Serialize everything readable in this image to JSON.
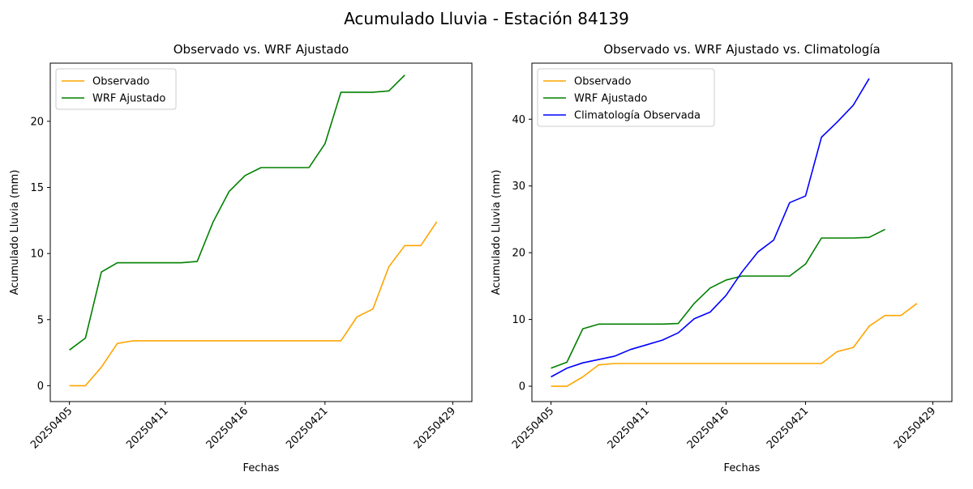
{
  "figure": {
    "suptitle": "Acumulado Lluvia - Estación 84139"
  },
  "chart_data": [
    {
      "type": "line",
      "title": "Observado vs. WRF Ajustado",
      "xlabel": "Fechas",
      "ylabel": "Acumulado Lluvia (mm)",
      "x": [
        "20250405",
        "20250406",
        "20250407",
        "20250408",
        "20250409",
        "20250410",
        "20250411",
        "20250412",
        "20250413",
        "20250414",
        "20250415",
        "20250416",
        "20250417",
        "20250418",
        "20250419",
        "20250420",
        "20250421",
        "20250422",
        "20250423",
        "20250424",
        "20250425",
        "20250426",
        "20250427",
        "20250428",
        "20250429"
      ],
      "xlim": [
        -1.2,
        25.2
      ],
      "ylim": [
        -1.2,
        24.4
      ],
      "xticks": [
        "20250405",
        "20250411",
        "20250416",
        "20250421",
        "20250429"
      ],
      "yticks": [
        0,
        5,
        10,
        15,
        20
      ],
      "legend_position": "upper left",
      "grid": false,
      "series": [
        {
          "name": "Observado",
          "color": "#ffa500",
          "points": [
            [
              0,
              0
            ],
            [
              1,
              0
            ],
            [
              2,
              1.4
            ],
            [
              3,
              3.2
            ],
            [
              4,
              3.4
            ],
            [
              5,
              3.4
            ],
            [
              6,
              3.4
            ],
            [
              7,
              3.4
            ],
            [
              8,
              3.4
            ],
            [
              9,
              3.4
            ],
            [
              10,
              3.4
            ],
            [
              11,
              3.4
            ],
            [
              12,
              3.4
            ],
            [
              13,
              3.4
            ],
            [
              14,
              3.4
            ],
            [
              15,
              3.4
            ],
            [
              16,
              3.4
            ],
            [
              17,
              3.4
            ],
            [
              18,
              5.2
            ],
            [
              19,
              5.8
            ],
            [
              20,
              9.0
            ],
            [
              21,
              10.6
            ],
            [
              22,
              10.6
            ],
            [
              23,
              12.4
            ]
          ]
        },
        {
          "name": "WRF Ajustado",
          "color": "#008000",
          "points": [
            [
              0,
              2.7
            ],
            [
              1,
              3.6
            ],
            [
              2,
              8.6
            ],
            [
              3,
              9.3
            ],
            [
              4,
              9.3
            ],
            [
              5,
              9.3
            ],
            [
              6,
              9.3
            ],
            [
              7,
              9.3
            ],
            [
              8,
              9.4
            ],
            [
              9,
              12.4
            ],
            [
              10,
              14.7
            ],
            [
              11,
              15.9
            ],
            [
              12,
              16.5
            ],
            [
              13,
              16.5
            ],
            [
              14,
              16.5
            ],
            [
              15,
              16.5
            ],
            [
              16,
              18.3
            ],
            [
              17,
              22.2
            ],
            [
              18,
              22.2
            ],
            [
              19,
              22.2
            ],
            [
              20,
              22.3
            ],
            [
              21,
              23.5
            ]
          ]
        }
      ]
    },
    {
      "type": "line",
      "title": "Observado vs. WRF Ajustado vs. Climatología",
      "xlabel": "Fechas",
      "ylabel": "Acumulado Lluvia (mm)",
      "x": [
        "20250405",
        "20250406",
        "20250407",
        "20250408",
        "20250409",
        "20250410",
        "20250411",
        "20250412",
        "20250413",
        "20250414",
        "20250415",
        "20250416",
        "20250417",
        "20250418",
        "20250419",
        "20250420",
        "20250421",
        "20250422",
        "20250423",
        "20250424",
        "20250425",
        "20250426",
        "20250427",
        "20250428",
        "20250429"
      ],
      "xlim": [
        -1.2,
        25.2
      ],
      "ylim": [
        -2.3,
        48.4
      ],
      "xticks": [
        "20250405",
        "20250411",
        "20250416",
        "20250421",
        "20250429"
      ],
      "yticks": [
        0,
        10,
        20,
        30,
        40
      ],
      "legend_position": "upper left",
      "grid": false,
      "series": [
        {
          "name": "Observado",
          "color": "#ffa500",
          "points": [
            [
              0,
              0
            ],
            [
              1,
              0
            ],
            [
              2,
              1.4
            ],
            [
              3,
              3.2
            ],
            [
              4,
              3.4
            ],
            [
              5,
              3.4
            ],
            [
              6,
              3.4
            ],
            [
              7,
              3.4
            ],
            [
              8,
              3.4
            ],
            [
              9,
              3.4
            ],
            [
              10,
              3.4
            ],
            [
              11,
              3.4
            ],
            [
              12,
              3.4
            ],
            [
              13,
              3.4
            ],
            [
              14,
              3.4
            ],
            [
              15,
              3.4
            ],
            [
              16,
              3.4
            ],
            [
              17,
              3.4
            ],
            [
              18,
              5.2
            ],
            [
              19,
              5.8
            ],
            [
              20,
              9.0
            ],
            [
              21,
              10.6
            ],
            [
              22,
              10.6
            ],
            [
              23,
              12.4
            ]
          ]
        },
        {
          "name": "WRF Ajustado",
          "color": "#008000",
          "points": [
            [
              0,
              2.7
            ],
            [
              1,
              3.6
            ],
            [
              2,
              8.6
            ],
            [
              3,
              9.3
            ],
            [
              4,
              9.3
            ],
            [
              5,
              9.3
            ],
            [
              6,
              9.3
            ],
            [
              7,
              9.3
            ],
            [
              8,
              9.4
            ],
            [
              9,
              12.4
            ],
            [
              10,
              14.7
            ],
            [
              11,
              15.9
            ],
            [
              12,
              16.5
            ],
            [
              13,
              16.5
            ],
            [
              14,
              16.5
            ],
            [
              15,
              16.5
            ],
            [
              16,
              18.3
            ],
            [
              17,
              22.2
            ],
            [
              18,
              22.2
            ],
            [
              19,
              22.2
            ],
            [
              20,
              22.3
            ],
            [
              21,
              23.5
            ]
          ]
        },
        {
          "name": "Climatología Observada",
          "color": "#0000ff",
          "points": [
            [
              0,
              1.4
            ],
            [
              1,
              2.7
            ],
            [
              2,
              3.5
            ],
            [
              3,
              4.0
            ],
            [
              4,
              4.5
            ],
            [
              5,
              5.5
            ],
            [
              6,
              6.2
            ],
            [
              7,
              6.9
            ],
            [
              8,
              8.0
            ],
            [
              9,
              10.1
            ],
            [
              10,
              11.1
            ],
            [
              11,
              13.6
            ],
            [
              12,
              17.1
            ],
            [
              13,
              20.1
            ],
            [
              14,
              21.9
            ],
            [
              15,
              27.5
            ],
            [
              16,
              28.5
            ],
            [
              17,
              37.3
            ],
            [
              18,
              39.6
            ],
            [
              19,
              42.1
            ],
            [
              20,
              46.1
            ]
          ]
        }
      ]
    }
  ]
}
